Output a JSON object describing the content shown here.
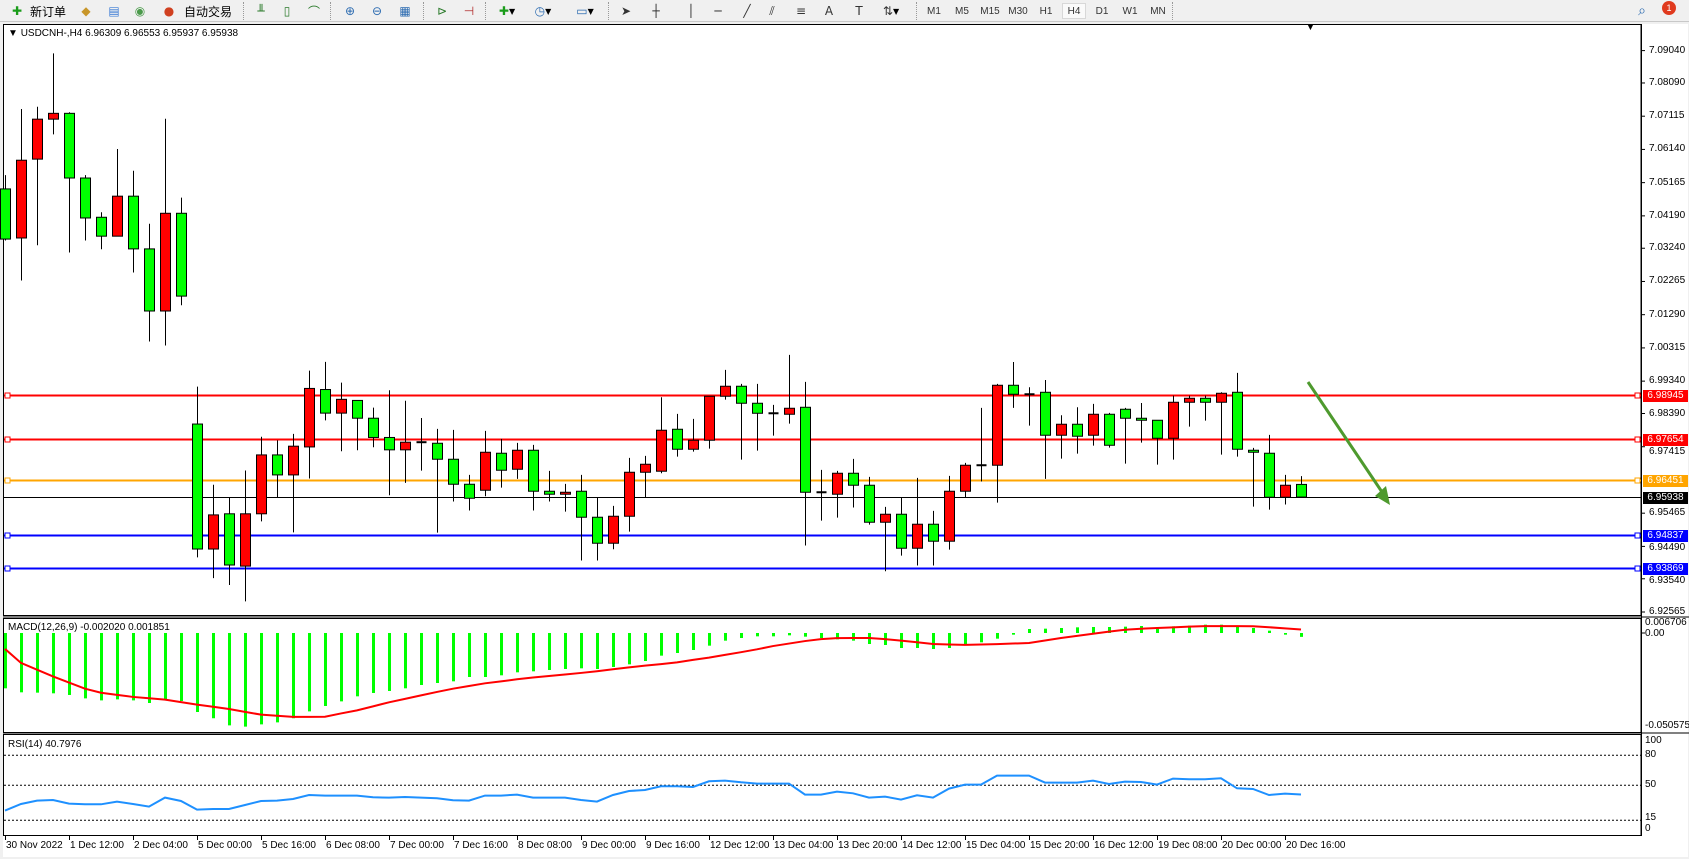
{
  "toolbar": {
    "new_order_label": "新订单",
    "auto_trading_label": "自动交易",
    "timeframes": [
      "M1",
      "M5",
      "M15",
      "M30",
      "H1",
      "H4",
      "D1",
      "W1",
      "MN"
    ],
    "active_timeframe": "H4",
    "notification_count": "1",
    "icons": [
      "new-order-icon",
      "market-watch-icon",
      "data-window-icon",
      "navigator-icon",
      "terminal-icon",
      "bar-chart-icon",
      "candlestick-icon",
      "line-chart-icon",
      "zoom-in-icon",
      "zoom-out-icon",
      "tile-windows-icon",
      "auto-scroll-icon",
      "chart-shift-icon",
      "indicators-icon",
      "periods-icon",
      "templates-icon",
      "cursor-icon",
      "crosshair-icon",
      "vertical-line-icon",
      "horizontal-line-icon",
      "trendline-icon",
      "equidistant-channel-icon",
      "fibonacci-icon",
      "text-icon",
      "text-label-icon",
      "arrows-icon",
      "search-icon",
      "notification-icon"
    ]
  },
  "chart": {
    "header": "USDCNH-,H4  6.96309 6.96553 6.95937 6.95938",
    "price_ticks": [
      "7.09040",
      "7.08090",
      "7.07115",
      "7.06140",
      "7.05165",
      "7.04190",
      "7.03240",
      "7.02265",
      "7.01290",
      "7.00315",
      "6.99340",
      "6.98390",
      "6.97415",
      "6.95465",
      "6.94490",
      "6.93540",
      "6.92565"
    ],
    "levels": [
      {
        "price": "6.98945",
        "color": "#ff0000"
      },
      {
        "price": "6.97654",
        "color": "#ff0000"
      },
      {
        "price": "6.96451",
        "color": "#ffa500"
      },
      {
        "price": "6.94837",
        "color": "#0000ff"
      },
      {
        "price": "6.93869",
        "color": "#0000ff"
      }
    ],
    "current_price": {
      "price": "6.95938",
      "color": "#000000"
    },
    "bull_color": "#ff0000",
    "bear_color": "#00ff00",
    "arrow_color": "#4e9a2e"
  },
  "macd": {
    "label": "MACD(12,26,9) -0.002020 0.001851",
    "scale_top": "0.006706",
    "scale_zero": "0.00",
    "scale_bottom": "-0.050575",
    "hist_color": "#00ff00",
    "signal_color": "#ff0000"
  },
  "rsi": {
    "label": "RSI(14) 40.7976",
    "levels": [
      "100",
      "80",
      "50",
      "15",
      "0"
    ],
    "line_color": "#1e90ff"
  },
  "time_labels": [
    "30 Nov 2022",
    "1 Dec 12:00",
    "2 Dec 04:00",
    "5 Dec 00:00",
    "5 Dec 16:00",
    "6 Dec 08:00",
    "7 Dec 00:00",
    "7 Dec 16:00",
    "8 Dec 08:00",
    "9 Dec 00:00",
    "9 Dec 16:00",
    "12 Dec 12:00",
    "13 Dec 04:00",
    "13 Dec 20:00",
    "14 Dec 12:00",
    "15 Dec 04:00",
    "15 Dec 20:00",
    "16 Dec 12:00",
    "19 Dec 08:00",
    "20 Dec 00:00",
    "20 Dec 16:00"
  ],
  "chart_data": {
    "type": "candlestick",
    "symbol": "USDCNH-",
    "timeframe": "H4",
    "ylim": [
      6.92565,
      7.0904
    ],
    "ohlc": [
      [
        7.04981,
        7.05386,
        7.03466,
        7.03509
      ],
      [
        7.03541,
        7.07327,
        7.02294,
        7.05823
      ],
      [
        7.05855,
        7.07391,
        7.03328,
        7.07028
      ],
      [
        7.07028,
        7.08958,
        7.06581,
        7.07199
      ],
      [
        7.07199,
        7.07231,
        7.03115,
        7.05301
      ],
      [
        7.05301,
        7.05386,
        7.03467,
        7.04128
      ],
      [
        7.04149,
        7.04298,
        7.03211,
        7.03594
      ],
      [
        7.03594,
        7.06154,
        7.03594,
        7.04768
      ],
      [
        7.04768,
        7.05514,
        7.02528,
        7.03221
      ],
      [
        7.03221,
        7.03957,
        7.00502,
        7.01398
      ],
      [
        7.01398,
        7.07039,
        7.00385,
        7.04266
      ],
      [
        7.04266,
        7.04725,
        7.01568,
        7.01835
      ],
      [
        6.98081,
        6.9918,
        6.94167,
        6.94413
      ],
      [
        6.94413,
        6.963,
        6.9356,
        6.95415
      ],
      [
        6.95447,
        6.95927,
        6.93357,
        6.93944
      ],
      [
        6.93912,
        6.96716,
        6.92877,
        6.95447
      ],
      [
        6.95447,
        6.97708,
        6.95223,
        6.97175
      ],
      [
        6.97175,
        6.97601,
        6.95916,
        6.96588
      ],
      [
        6.96588,
        6.97793,
        6.94903,
        6.97431
      ],
      [
        6.97409,
        6.99649,
        6.96482,
        6.99126
      ],
      [
        6.99094,
        6.99905,
        6.98188,
        6.98401
      ],
      [
        6.98401,
        6.99297,
        6.97281,
        6.98806
      ],
      [
        6.98774,
        6.98774,
        6.97313,
        6.98252
      ],
      [
        6.98252,
        6.98561,
        6.97399,
        6.97687
      ],
      [
        6.97687,
        6.99073,
        6.95991,
        6.97324
      ],
      [
        6.97324,
        6.98764,
        6.96354,
        6.97548
      ],
      [
        6.97548,
        6.9826,
        6.96715,
        6.97527
      ],
      [
        6.97517,
        6.97938,
        6.94896,
        6.97048
      ],
      [
        6.97048,
        6.97908,
        6.95806,
        6.96314
      ],
      [
        6.96314,
        6.96588,
        6.95542,
        6.95903
      ],
      [
        6.96138,
        6.97879,
        6.95962,
        6.97253
      ],
      [
        6.97224,
        6.97644,
        6.96216,
        6.96725
      ],
      [
        6.96754,
        6.97527,
        6.96471,
        6.97312
      ],
      [
        6.97312,
        6.97468,
        6.95542,
        6.96109
      ],
      [
        6.96109,
        6.96705,
        6.95806,
        6.96021
      ],
      [
        6.96021,
        6.96324,
        6.95512,
        6.96079
      ],
      [
        6.96109,
        6.96588,
        6.94075,
        6.95346
      ],
      [
        6.95346,
        6.95923,
        6.94075,
        6.94583
      ],
      [
        6.94583,
        6.95678,
        6.94407,
        6.95375
      ],
      [
        6.95375,
        6.97087,
        6.94925,
        6.96666
      ],
      [
        6.96666,
        6.97146,
        6.95933,
        6.96901
      ],
      [
        6.96696,
        6.98867,
        6.96637,
        6.97899
      ],
      [
        6.97928,
        6.98378,
        6.97126,
        6.97341
      ],
      [
        6.97341,
        6.98231,
        6.97273,
        6.97605
      ],
      [
        6.97605,
        6.98896,
        6.97361,
        6.98896
      ],
      [
        6.98896,
        6.99669,
        6.98798,
        6.9919
      ],
      [
        6.9919,
        6.99258,
        6.97038,
        6.98691
      ],
      [
        6.98691,
        6.99258,
        6.97302,
        6.98397
      ],
      [
        6.98397,
        6.98642,
        6.97742,
        6.98378
      ],
      [
        6.98368,
        7.00109,
        6.98094,
        6.98544
      ],
      [
        6.98573,
        6.99317,
        6.94515,
        6.96079
      ],
      [
        6.96079,
        6.96735,
        6.95248,
        6.9604
      ],
      [
        6.96021,
        6.96705,
        6.95336,
        6.96637
      ],
      [
        6.96637,
        6.97058,
        6.9563,
        6.96285
      ],
      [
        6.96285,
        6.96529,
        6.95131,
        6.95199
      ],
      [
        6.95199,
        6.95649,
        6.93762,
        6.95434
      ],
      [
        6.95434,
        6.95923,
        6.94221,
        6.94436
      ],
      [
        6.94436,
        6.965,
        6.93928,
        6.95141
      ],
      [
        6.95141,
        6.95532,
        6.93928,
        6.94642
      ],
      [
        6.94642,
        6.96559,
        6.94397,
        6.96109
      ],
      [
        6.96109,
        6.9694,
        6.95933,
        6.96872
      ],
      [
        6.96872,
        6.98554,
        6.96393,
        6.96872
      ],
      [
        6.96872,
        6.99258,
        6.95776,
        6.99219
      ],
      [
        6.99219,
        6.99903,
        6.98554,
        6.98955
      ],
      [
        6.98955,
        6.9916,
        6.98036,
        6.98955
      ],
      [
        6.99013,
        6.99375,
        6.96471,
        6.97752
      ],
      [
        6.97752,
        6.98339,
        6.97067,
        6.98075
      ],
      [
        6.98075,
        6.98573,
        6.97214,
        6.97723
      ],
      [
        6.97752,
        6.98671,
        6.97449,
        6.98368
      ],
      [
        6.98368,
        6.98407,
        6.9739,
        6.97458
      ],
      [
        6.98515,
        6.98554,
        6.96921,
        6.98251
      ],
      [
        6.98251,
        6.987,
        6.97537,
        6.98192
      ],
      [
        6.98192,
        6.98192,
        6.96891,
        6.97664
      ],
      [
        6.97664,
        6.98916,
        6.97038,
        6.9872
      ],
      [
        6.9872,
        6.98916,
        6.98006,
        6.98837
      ],
      [
        6.98837,
        6.98916,
        6.98182,
        6.9872
      ],
      [
        6.9872,
        6.99013,
        6.97185,
        6.98984
      ],
      [
        6.99013,
        6.99581,
        6.97126,
        6.97341
      ],
      [
        6.97312,
        6.9738,
        6.95659,
        6.97253
      ],
      [
        6.97224,
        6.97762,
        6.95571,
        6.95933
      ],
      [
        6.95933,
        6.96588,
        6.95718,
        6.96285
      ],
      [
        6.96309,
        6.96553,
        6.95937,
        6.95938
      ]
    ],
    "macd_ylim": [
      -0.050575,
      0.006706
    ],
    "macd_hist": [
      -0.02881,
      -0.0309,
      -0.03107,
      -0.03142,
      -0.03228,
      -0.03402,
      -0.03506,
      -0.03454,
      -0.03506,
      -0.03645,
      -0.03506,
      -0.03541,
      -0.04114,
      -0.04443,
      -0.04808,
      -0.04877,
      -0.04756,
      -0.04652,
      -0.04443,
      -0.04079,
      -0.03801,
      -0.03558,
      -0.03298,
      -0.03124,
      -0.0302,
      -0.02881,
      -0.02708,
      -0.02604,
      -0.02517,
      -0.02291,
      -0.02291,
      -0.02204,
      -0.02048,
      -0.01996,
      -0.01927,
      -0.01875,
      -0.0184,
      -0.01875,
      -0.0177,
      -0.01632,
      -0.01458,
      -0.0118,
      -0.01041,
      -0.00885,
      -0.0066,
      -0.00399,
      -0.0026,
      -0.00174,
      -0.00174,
      -0.00122,
      -0.00191,
      -0.0026,
      -0.0033,
      -0.00399,
      -0.00573,
      -0.00625,
      -0.00781,
      -0.00781,
      -0.00833,
      -0.00781,
      -0.00642,
      -0.00486,
      -0.00295,
      -0.00087,
      0.00208,
      0.00226,
      0.0026,
      0.00295,
      0.00312,
      0.00312,
      0.0033,
      0.00364,
      0.00278,
      0.00347,
      0.00382,
      0.00434,
      0.00434,
      0.00364,
      0.0026,
      0.00122,
      -0.00087,
      -0.00202
    ],
    "macd_signal": [
      -0.0083,
      -0.0156,
      -0.0191,
      -0.0226,
      -0.0258,
      -0.029,
      -0.0311,
      -0.0322,
      -0.0333,
      -0.034,
      -0.0347,
      -0.036,
      -0.0373,
      -0.0384,
      -0.0396,
      -0.0411,
      -0.0425,
      -0.0431,
      -0.0437,
      -0.0437,
      -0.0436,
      -0.0419,
      -0.0403,
      -0.0382,
      -0.0361,
      -0.0343,
      -0.0325,
      -0.0307,
      -0.029,
      -0.0276,
      -0.0262,
      -0.0252,
      -0.0241,
      -0.0232,
      -0.0224,
      -0.0216,
      -0.0208,
      -0.0199,
      -0.0189,
      -0.0179,
      -0.017,
      -0.0162,
      -0.0153,
      -0.014,
      -0.0128,
      -0.0114,
      -0.01,
      -0.0085,
      -0.0068,
      -0.0055,
      -0.0042,
      -0.0032,
      -0.0027,
      -0.0026,
      -0.0026,
      -0.0032,
      -0.004,
      -0.0048,
      -0.0057,
      -0.006,
      -0.0062,
      -0.006,
      -0.0058,
      -0.0055,
      -0.0052,
      -0.0039,
      -0.0026,
      -0.0015,
      -0.0004,
      0.0007,
      0.0017,
      0.0022,
      0.0026,
      0.0029,
      0.0033,
      0.0036,
      0.0036,
      0.0036,
      0.0035,
      0.003,
      0.0024,
      0.00185
    ],
    "rsi": [
      24.7,
      31.3,
      34.7,
      35.3,
      31.7,
      31,
      31,
      33.7,
      31.3,
      28.7,
      37.7,
      34.3,
      25.7,
      26.3,
      26.3,
      30.3,
      34.3,
      34.7,
      36.3,
      40.3,
      39.7,
      39.7,
      39.7,
      38,
      37.7,
      38.3,
      37.7,
      37,
      35,
      34.7,
      39.7,
      39.7,
      40.7,
      37.7,
      37.7,
      37.7,
      35.3,
      33.7,
      40.3,
      44.3,
      45.3,
      49,
      49,
      48.3,
      54,
      54.7,
      53,
      51.7,
      51.7,
      51.7,
      40.7,
      40.7,
      43.7,
      42,
      37.7,
      38.7,
      35.7,
      40,
      37.7,
      46.7,
      50.7,
      50.7,
      59.7,
      59.7,
      59.7,
      52.7,
      52.7,
      52.7,
      54.7,
      51.3,
      53.7,
      53.3,
      50.7,
      56.7,
      56,
      56,
      57,
      47,
      46.3,
      40.3,
      41.7,
      40.7976
    ],
    "rsi_ylim": [
      0,
      100
    ],
    "rsi_levels": [
      80,
      50,
      15
    ]
  }
}
